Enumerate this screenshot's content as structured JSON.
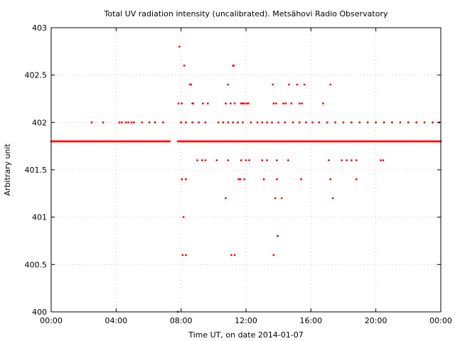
{
  "chart_data": {
    "type": "scatter",
    "title": "Total UV radiation intensity (uncalibrated). Metsähovi Radio Observatory",
    "xlabel": "Time UT, on date 2014-01-07",
    "ylabel": "Arbitrary unit",
    "xlim": [
      0,
      24
    ],
    "ylim": [
      400,
      403
    ],
    "grid": true,
    "x_ticks": [
      {
        "value": 0,
        "label": "00:00"
      },
      {
        "value": 4,
        "label": "04:00"
      },
      {
        "value": 8,
        "label": "08:00"
      },
      {
        "value": 12,
        "label": "12:00"
      },
      {
        "value": 16,
        "label": "16:00"
      },
      {
        "value": 20,
        "label": "20:00"
      },
      {
        "value": 24,
        "label": "00:00"
      }
    ],
    "y_ticks": [
      {
        "value": 400,
        "label": "400"
      },
      {
        "value": 400.5,
        "label": "400.5"
      },
      {
        "value": 401,
        "label": "401"
      },
      {
        "value": 401.5,
        "label": "401.5"
      },
      {
        "value": 402,
        "label": "402"
      },
      {
        "value": 402.5,
        "label": "402.5"
      },
      {
        "value": 403,
        "label": "403"
      }
    ],
    "marker_color": "#ff0000",
    "baseline_series": {
      "value": 401.8,
      "ranges": [
        [
          0,
          7.3
        ],
        [
          7.8,
          24
        ]
      ],
      "step_hours": 0.05
    },
    "points": [
      [
        2.5,
        402
      ],
      [
        3.2,
        402
      ],
      [
        4.2,
        402
      ],
      [
        4.35,
        402
      ],
      [
        4.6,
        402
      ],
      [
        4.75,
        402
      ],
      [
        4.95,
        402
      ],
      [
        5.1,
        402
      ],
      [
        5.6,
        402
      ],
      [
        6.05,
        402
      ],
      [
        6.4,
        402
      ],
      [
        6.9,
        402
      ],
      [
        7.8,
        400
      ],
      [
        7.9,
        402.8
      ],
      [
        8.2,
        402.6
      ],
      [
        8.55,
        402.4
      ],
      [
        8.62,
        402.4
      ],
      [
        8.7,
        402.2
      ],
      [
        8.75,
        402.2
      ],
      [
        7.85,
        402.2
      ],
      [
        8.05,
        402.2
      ],
      [
        9.35,
        402.2
      ],
      [
        9.65,
        402.2
      ],
      [
        10.9,
        402.4
      ],
      [
        10.75,
        402.2
      ],
      [
        11.05,
        402.2
      ],
      [
        11.3,
        402.2
      ],
      [
        11.2,
        402.6
      ],
      [
        11.25,
        402.6
      ],
      [
        11.7,
        402.2
      ],
      [
        11.8,
        402.2
      ],
      [
        11.9,
        402.2
      ],
      [
        12.05,
        402.2
      ],
      [
        12.15,
        402.2
      ],
      [
        13.65,
        402.4
      ],
      [
        13.7,
        402.2
      ],
      [
        13.85,
        402.2
      ],
      [
        14.3,
        402.2
      ],
      [
        14.45,
        402.2
      ],
      [
        14.65,
        402.4
      ],
      [
        14.8,
        402.2
      ],
      [
        15.15,
        402.4
      ],
      [
        15.3,
        402.2
      ],
      [
        15.45,
        402.2
      ],
      [
        15.6,
        402.4
      ],
      [
        16.75,
        402.2
      ],
      [
        17.2,
        402.4
      ],
      [
        8.0,
        402
      ],
      [
        8.3,
        402
      ],
      [
        8.7,
        402
      ],
      [
        9.1,
        402
      ],
      [
        9.5,
        402
      ],
      [
        10.3,
        402
      ],
      [
        10.6,
        402
      ],
      [
        10.9,
        402
      ],
      [
        11.2,
        402
      ],
      [
        11.5,
        402
      ],
      [
        11.8,
        402
      ],
      [
        12.3,
        402
      ],
      [
        12.7,
        402
      ],
      [
        13.0,
        402
      ],
      [
        13.3,
        402
      ],
      [
        13.6,
        402
      ],
      [
        14.0,
        402
      ],
      [
        14.4,
        402
      ],
      [
        14.9,
        402
      ],
      [
        15.3,
        402
      ],
      [
        15.7,
        402
      ],
      [
        16.1,
        402
      ],
      [
        16.5,
        402
      ],
      [
        17.0,
        402
      ],
      [
        17.5,
        402
      ],
      [
        18.0,
        402
      ],
      [
        18.5,
        402
      ],
      [
        19.0,
        402
      ],
      [
        19.5,
        402
      ],
      [
        20.0,
        402
      ],
      [
        20.5,
        402
      ],
      [
        21.0,
        402
      ],
      [
        21.5,
        402
      ],
      [
        22.0,
        402
      ],
      [
        22.5,
        402
      ],
      [
        23.0,
        402
      ],
      [
        23.5,
        402
      ],
      [
        23.9,
        402
      ],
      [
        9.0,
        401.6
      ],
      [
        9.3,
        401.6
      ],
      [
        9.5,
        401.6
      ],
      [
        10.2,
        401.6
      ],
      [
        10.9,
        401.6
      ],
      [
        11.7,
        401.6
      ],
      [
        12.0,
        401.6
      ],
      [
        12.2,
        401.6
      ],
      [
        13.0,
        401.6
      ],
      [
        13.3,
        401.6
      ],
      [
        13.9,
        401.6
      ],
      [
        14.6,
        401.6
      ],
      [
        17.1,
        401.6
      ],
      [
        17.9,
        401.6
      ],
      [
        18.2,
        401.6
      ],
      [
        18.5,
        401.6
      ],
      [
        18.8,
        401.6
      ],
      [
        20.3,
        401.6
      ],
      [
        20.45,
        401.6
      ],
      [
        8.05,
        401.4
      ],
      [
        8.3,
        401.4
      ],
      [
        11.55,
        401.4
      ],
      [
        11.65,
        401.4
      ],
      [
        11.9,
        401.4
      ],
      [
        13.1,
        401.4
      ],
      [
        13.9,
        401.4
      ],
      [
        15.4,
        401.4
      ],
      [
        17.2,
        401.4
      ],
      [
        18.8,
        401.4
      ],
      [
        10.75,
        401.2
      ],
      [
        13.8,
        401.2
      ],
      [
        14.2,
        401.2
      ],
      [
        17.35,
        401.2
      ],
      [
        8.15,
        401
      ],
      [
        13.95,
        400.8
      ],
      [
        8.1,
        400.6
      ],
      [
        8.3,
        400.6
      ],
      [
        11.1,
        400.6
      ],
      [
        11.3,
        400.6
      ],
      [
        13.7,
        400.6
      ]
    ]
  }
}
